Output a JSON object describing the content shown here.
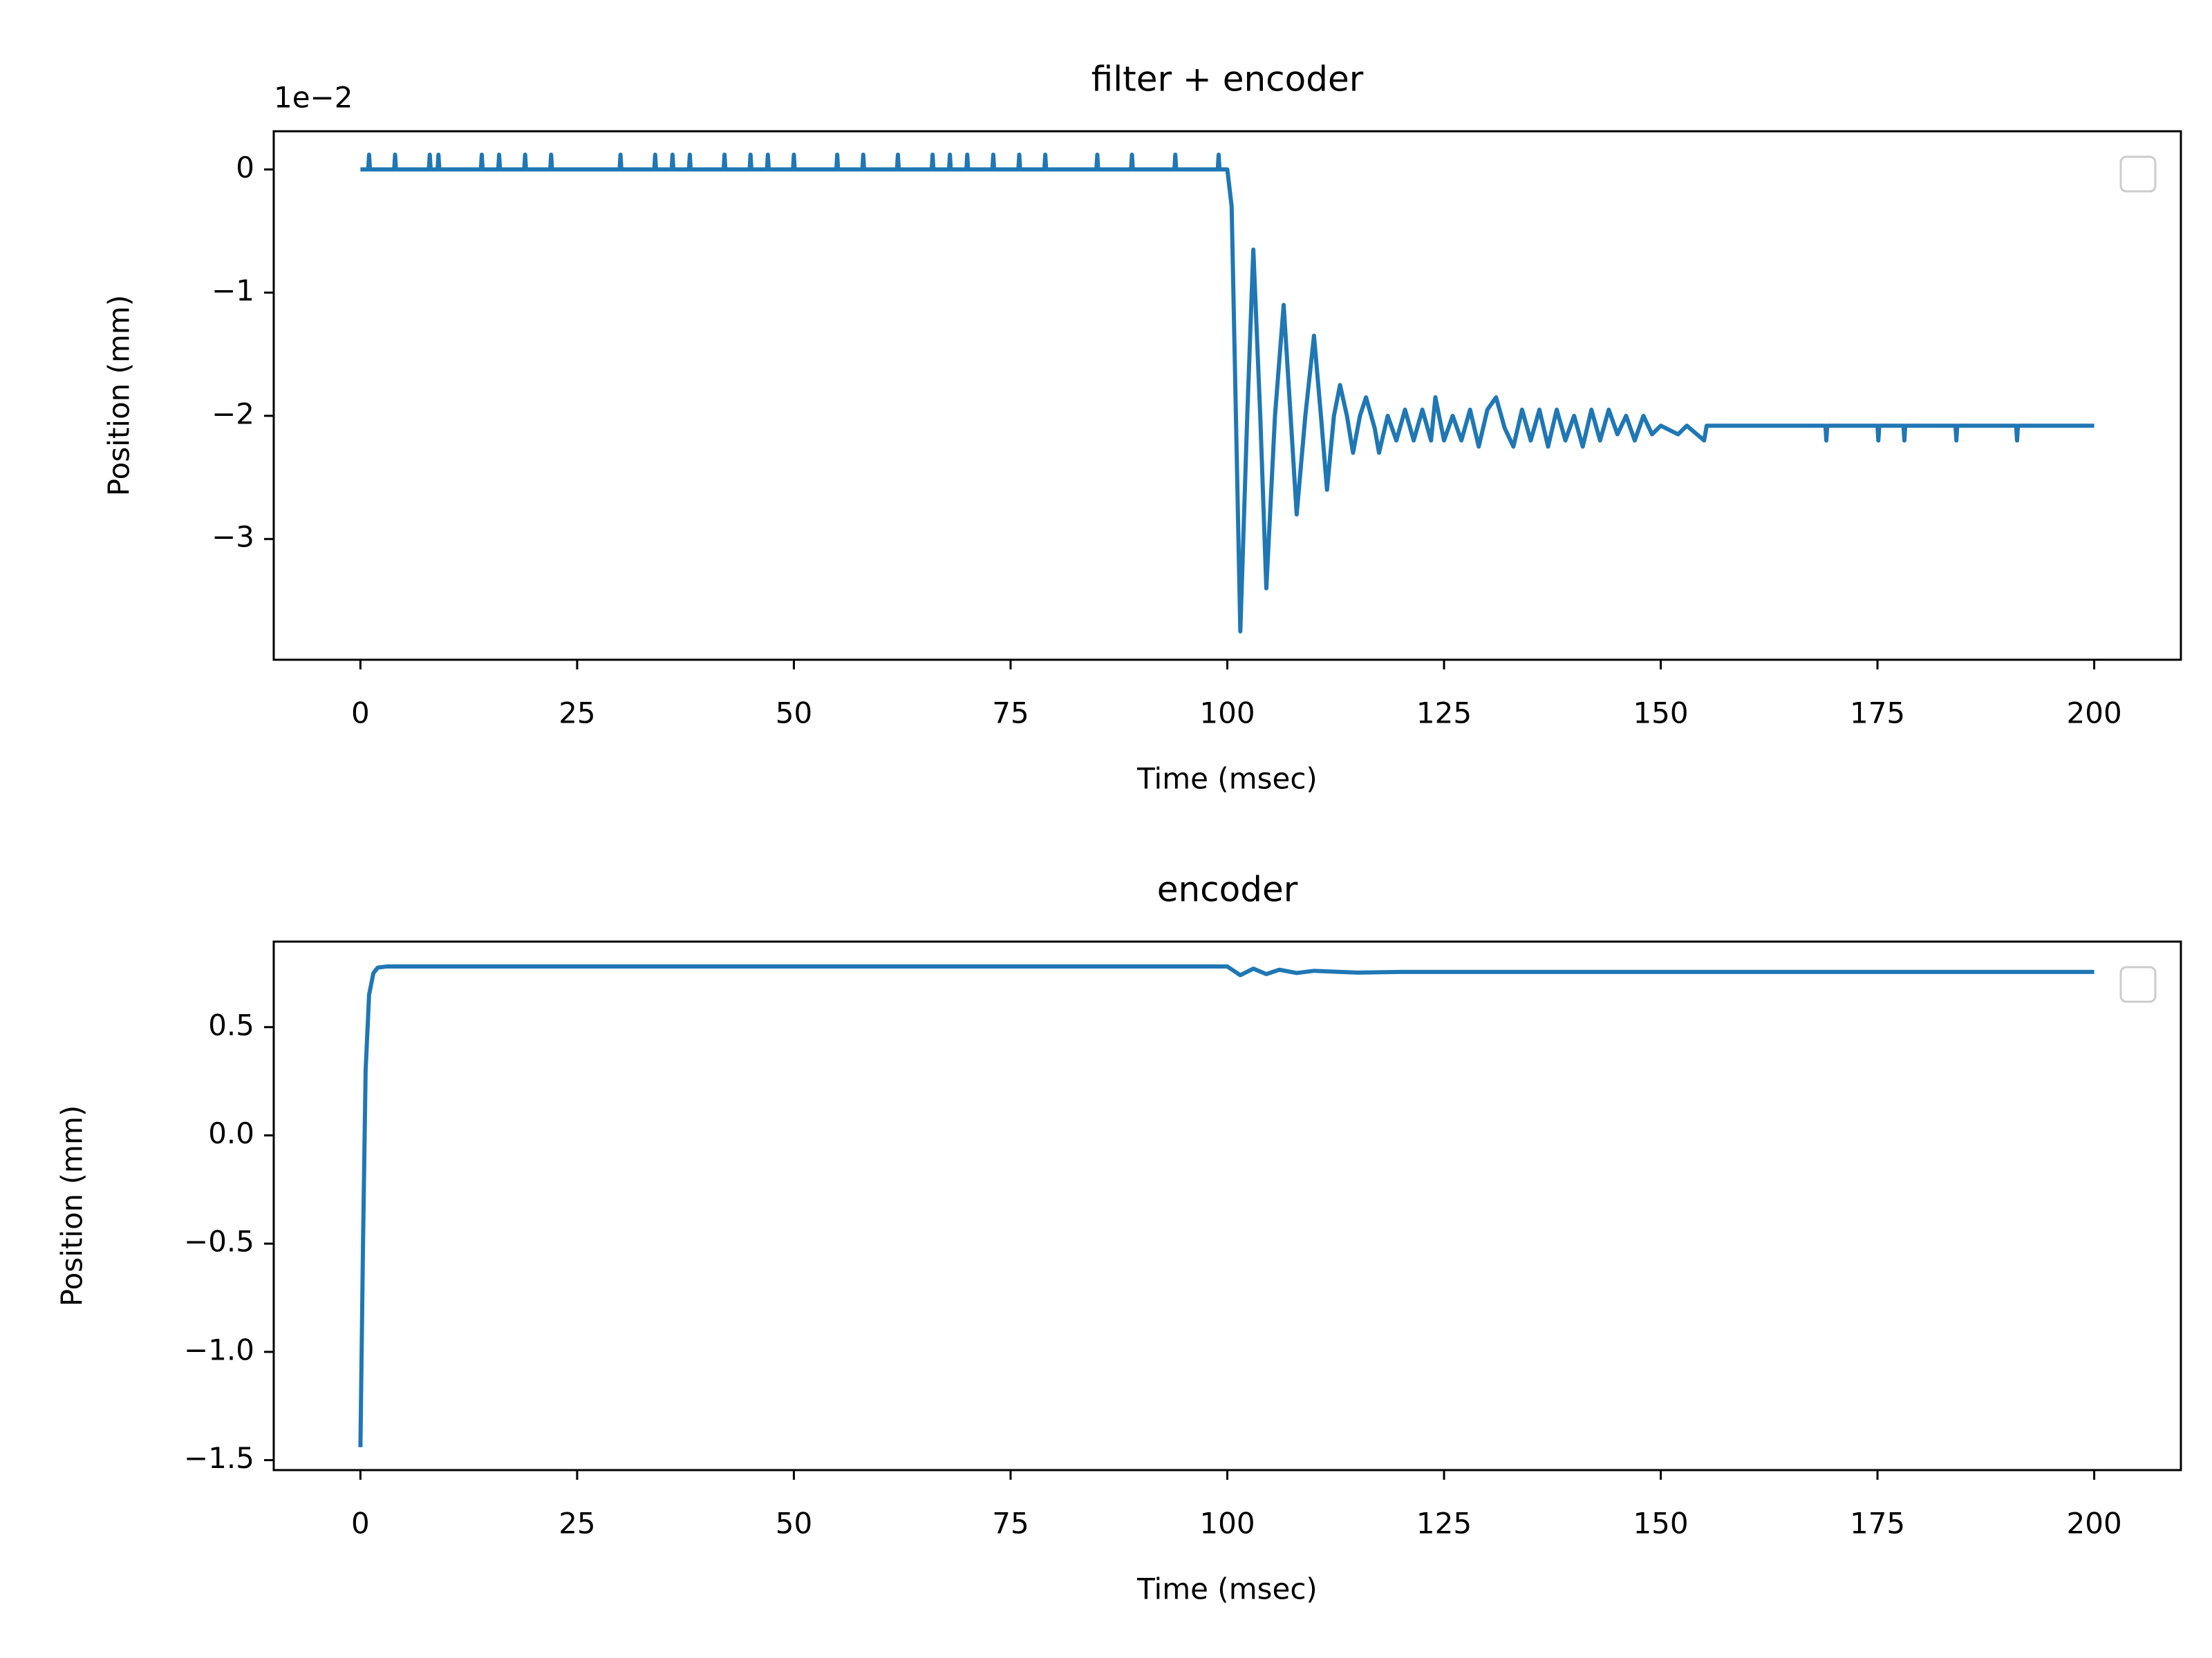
{
  "chart_data": [
    {
      "type": "line",
      "title": "filter + encoder",
      "xlabel": "Time (msec)",
      "ylabel": "Position (mm)",
      "offset_text": "1e−2",
      "legend": "upper right",
      "xlim": [
        -10,
        210
      ],
      "xticks": [
        0,
        25,
        50,
        75,
        100,
        125,
        150,
        175,
        200
      ],
      "ylim": [
        -3.98,
        0.31
      ],
      "yticks": [
        {
          "value": -3,
          "label": "−3"
        },
        {
          "value": -2,
          "label": "−2"
        },
        {
          "value": -1,
          "label": "−1"
        },
        0
      ],
      "x": [
        0,
        0.9,
        1,
        1.1,
        3.9,
        4,
        4.1,
        7.9,
        8,
        8.1,
        8.9,
        9,
        9.1,
        13.9,
        14,
        14.1,
        15.9,
        16,
        16.1,
        18.9,
        19,
        19.1,
        21.9,
        22,
        22.1,
        29.9,
        30,
        30.1,
        33.9,
        34,
        34.1,
        35.9,
        36,
        36.1,
        37.9,
        38,
        38.1,
        41.9,
        42,
        42.1,
        44.9,
        45,
        45.1,
        46.9,
        47,
        47.1,
        49.9,
        50,
        50.1,
        54.9,
        55,
        55.1,
        57.9,
        58,
        58.1,
        61.9,
        62,
        62.1,
        65.9,
        66,
        66.1,
        67.9,
        68,
        68.1,
        69.9,
        70,
        70.1,
        72.9,
        73,
        73.1,
        75.9,
        76,
        76.1,
        78.9,
        79,
        79.1,
        84.9,
        85,
        85.1,
        88.9,
        89,
        89.1,
        93.9,
        94,
        94.1,
        98.9,
        99,
        99.1,
        100,
        100.5,
        101.5,
        102.3,
        103,
        103.8,
        104.5,
        105.5,
        106.5,
        107.3,
        108,
        109,
        110,
        110.8,
        111.5,
        112.3,
        113,
        113.8,
        114.5,
        115.3,
        116,
        117,
        117.5,
        118.5,
        119.5,
        120.5,
        121.5,
        122.5,
        123.5,
        124,
        125,
        126,
        127,
        128,
        129,
        130,
        131,
        132,
        133,
        134,
        135,
        136,
        137,
        138,
        139,
        140,
        141,
        142,
        143,
        144,
        145,
        146,
        147,
        148,
        149,
        150,
        152,
        153,
        155,
        155.3,
        169,
        169.1,
        169.2,
        175,
        175.1,
        175.2,
        178,
        178.1,
        178.2,
        184,
        184.1,
        184.2,
        191,
        191.1,
        191.2,
        200
      ],
      "series": [
        {
          "color": "#1f77b4",
          "values": [
            0,
            0,
            0.12,
            0,
            0,
            0.12,
            0,
            0,
            0.12,
            0,
            0,
            0.12,
            0,
            0,
            0.12,
            0,
            0,
            0.12,
            0,
            0,
            0.12,
            0,
            0,
            0.12,
            0,
            0,
            0.12,
            0,
            0,
            0.12,
            0,
            0,
            0.12,
            0,
            0,
            0.12,
            0,
            0,
            0.12,
            0,
            0,
            0.12,
            0,
            0,
            0.12,
            0,
            0,
            0.12,
            0,
            0,
            0.12,
            0,
            0,
            0.12,
            0,
            0,
            0.12,
            0,
            0,
            0.12,
            0,
            0,
            0.12,
            0,
            0,
            0.12,
            0,
            0,
            0.12,
            0,
            0,
            0.12,
            0,
            0,
            0.12,
            0,
            0,
            0.12,
            0,
            0,
            0.12,
            0,
            0,
            0.12,
            0,
            0,
            0.12,
            0,
            0,
            -0.3,
            -3.75,
            -2,
            -0.65,
            -2,
            -3.4,
            -2,
            -1.1,
            -2,
            -2.8,
            -2,
            -1.35,
            -2,
            -2.6,
            -2,
            -1.75,
            -2,
            -2.3,
            -2,
            -1.85,
            -2.1,
            -2.3,
            -2,
            -2.2,
            -1.95,
            -2.2,
            -1.95,
            -2.2,
            -1.85,
            -2.2,
            -2,
            -2.2,
            -1.95,
            -2.25,
            -1.95,
            -1.85,
            -2.1,
            -2.25,
            -1.95,
            -2.2,
            -1.95,
            -2.25,
            -1.95,
            -2.2,
            -2,
            -2.25,
            -1.95,
            -2.2,
            -1.95,
            -2.15,
            -2,
            -2.2,
            -2,
            -2.15,
            -2.08,
            -2.15,
            -2.08,
            -2.2,
            -2.08,
            -2.08,
            -2.2,
            -2.08,
            -2.08,
            -2.2,
            -2.08,
            -2.08,
            -2.2,
            -2.08,
            -2.08,
            -2.2,
            -2.08,
            -2.08,
            -2.2,
            -2.08,
            -2.08
          ]
        }
      ]
    },
    {
      "type": "line",
      "title": "encoder",
      "xlabel": "Time (msec)",
      "ylabel": "Position (mm)",
      "legend": "upper right",
      "xlim": [
        -10,
        210
      ],
      "xticks": [
        0,
        25,
        50,
        75,
        100,
        125,
        150,
        175,
        200
      ],
      "ylim": [
        -1.546,
        0.895
      ],
      "yticks": [
        {
          "value": -1.5,
          "label": "−1.5"
        },
        {
          "value": -1.0,
          "label": "−1.0"
        },
        {
          "value": -0.5,
          "label": "−0.5"
        },
        {
          "value": 0,
          "label": "0.0"
        },
        0.5
      ],
      "x": [
        0,
        0.3,
        0.6,
        1,
        1.5,
        2,
        3,
        100,
        101.5,
        103,
        104.5,
        106,
        108,
        110,
        115,
        120,
        200
      ],
      "series": [
        {
          "color": "#1f77b4",
          "values": [
            -1.44,
            -0.5,
            0.3,
            0.65,
            0.75,
            0.775,
            0.78,
            0.78,
            0.74,
            0.77,
            0.745,
            0.765,
            0.75,
            0.76,
            0.752,
            0.755,
            0.755
          ]
        }
      ]
    }
  ]
}
